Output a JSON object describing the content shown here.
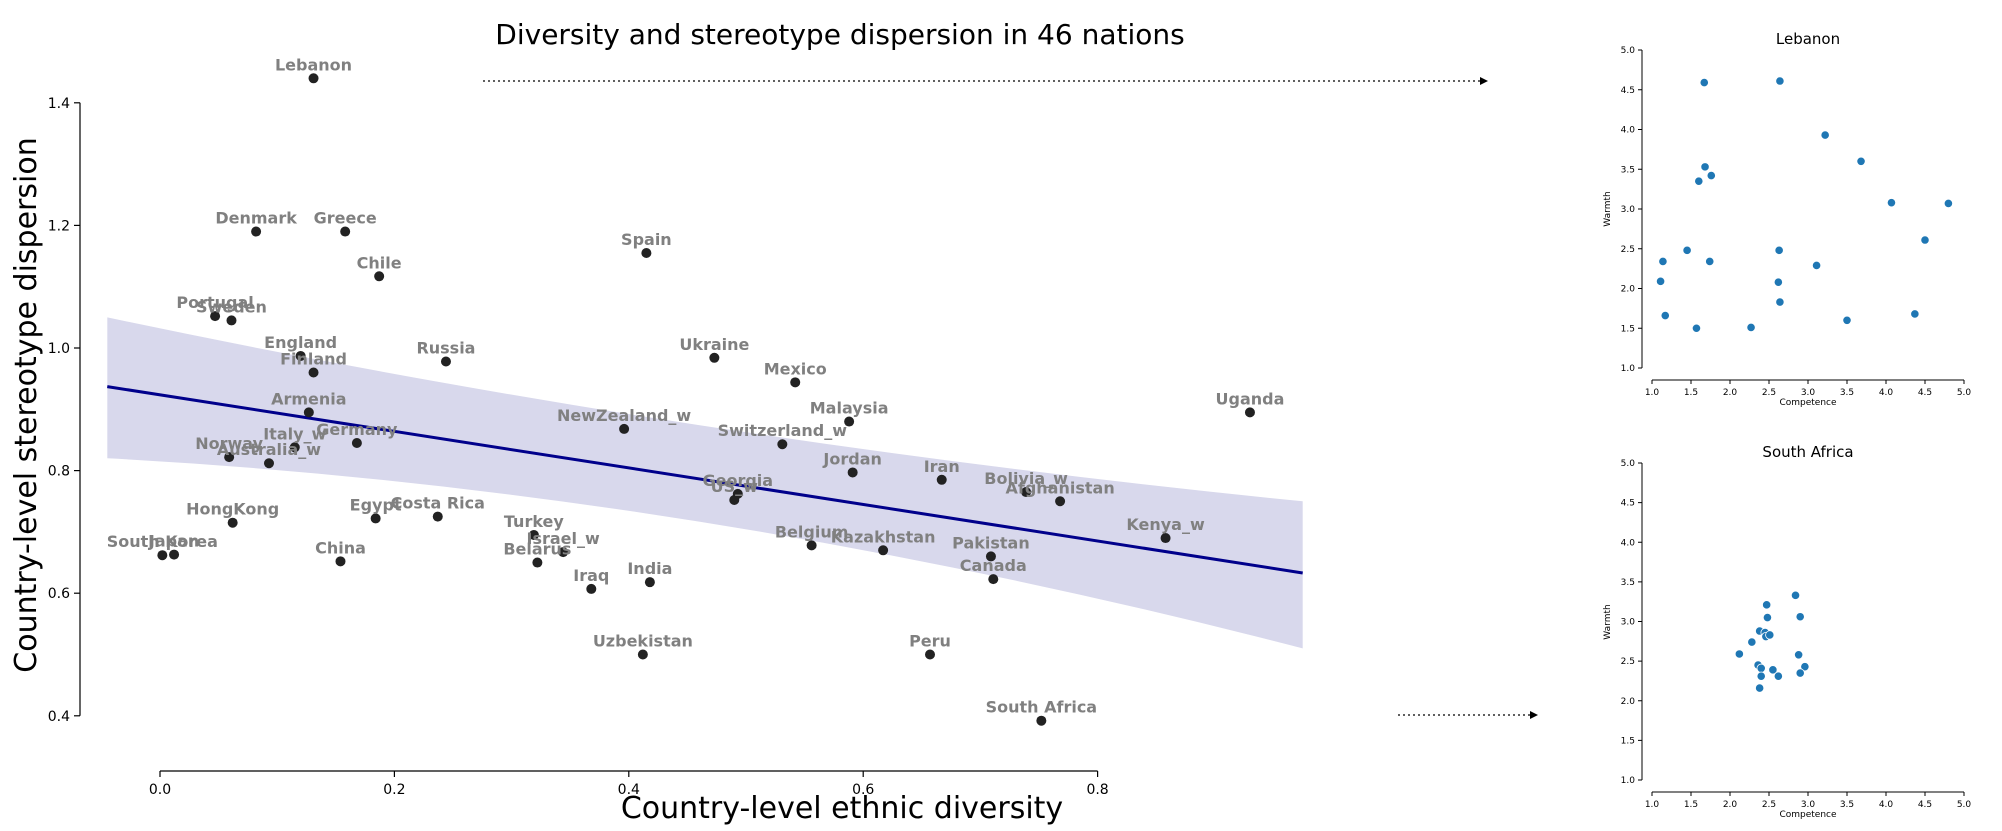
{
  "figure": {
    "title": "Diversity and stereotype dispersion in 46 nations"
  },
  "colors": {
    "point": "#222222",
    "label": "#808080",
    "regression_line": "#00008b",
    "confidence_band": "#d8d8ec",
    "inset_point": "#1f77b4"
  },
  "chart_data": [
    {
      "type": "scatter",
      "title": "Diversity and stereotype dispersion in 46 nations",
      "xlabel": "Country-level ethnic diversity",
      "ylabel": "Country-level stereotype dispersion",
      "xlim": [
        -0.07,
        1.0
      ],
      "ylim": [
        0.31,
        1.46
      ],
      "xticks": [
        "0.0",
        "0.2",
        "0.4",
        "0.6",
        "0.8"
      ],
      "yticks": [
        "0.4",
        "0.6",
        "0.8",
        "1.0",
        "1.2",
        "1.4"
      ],
      "grid": false,
      "regression": {
        "x_start": -0.045,
        "y_start": 0.937,
        "x_end": 0.975,
        "y_end": 0.633,
        "band_start": [
          0.82,
          1.05
        ],
        "band_mid": [
          0.77,
          0.85
        ],
        "band_mid_x": 0.45,
        "band_end": [
          0.51,
          0.75
        ]
      },
      "points": [
        {
          "label": "Lebanon",
          "x": 0.131,
          "y": 1.44
        },
        {
          "label": "Denmark",
          "x": 0.082,
          "y": 1.19
        },
        {
          "label": "Greece",
          "x": 0.158,
          "y": 1.19
        },
        {
          "label": "Spain",
          "x": 0.415,
          "y": 1.155
        },
        {
          "label": "Chile",
          "x": 0.187,
          "y": 1.117
        },
        {
          "label": "Portugal",
          "x": 0.047,
          "y": 1.052
        },
        {
          "label": "Sweden",
          "x": 0.061,
          "y": 1.045
        },
        {
          "label": "England",
          "x": 0.12,
          "y": 0.987
        },
        {
          "label": "Finland",
          "x": 0.131,
          "y": 0.96
        },
        {
          "label": "Russia",
          "x": 0.244,
          "y": 0.978
        },
        {
          "label": "Ukraine",
          "x": 0.473,
          "y": 0.984
        },
        {
          "label": "Mexico",
          "x": 0.542,
          "y": 0.944
        },
        {
          "label": "Armenia",
          "x": 0.127,
          "y": 0.895
        },
        {
          "label": "NewZealand_w",
          "x": 0.396,
          "y": 0.868
        },
        {
          "label": "Malaysia",
          "x": 0.588,
          "y": 0.88
        },
        {
          "label": "Switzerland_w",
          "x": 0.531,
          "y": 0.843
        },
        {
          "label": "Germany",
          "x": 0.168,
          "y": 0.845
        },
        {
          "label": "Italy_w",
          "x": 0.115,
          "y": 0.838
        },
        {
          "label": "Norway",
          "x": 0.059,
          "y": 0.822
        },
        {
          "label": "Australia_w",
          "x": 0.093,
          "y": 0.812
        },
        {
          "label": "Jordan",
          "x": 0.591,
          "y": 0.797
        },
        {
          "label": "Iran",
          "x": 0.667,
          "y": 0.785
        },
        {
          "label": "Bolivia_w",
          "x": 0.739,
          "y": 0.765
        },
        {
          "label": "Afghanistan",
          "x": 0.768,
          "y": 0.75
        },
        {
          "label": "Georgia",
          "x": 0.493,
          "y": 0.762
        },
        {
          "label": "US_w",
          "x": 0.49,
          "y": 0.752
        },
        {
          "label": "Uganda",
          "x": 0.93,
          "y": 0.895
        },
        {
          "label": "HongKong",
          "x": 0.062,
          "y": 0.715
        },
        {
          "label": "Egypt",
          "x": 0.184,
          "y": 0.722
        },
        {
          "label": "Costa Rica",
          "x": 0.237,
          "y": 0.725
        },
        {
          "label": "Turkey",
          "x": 0.319,
          "y": 0.695
        },
        {
          "label": "Israel_w",
          "x": 0.344,
          "y": 0.667
        },
        {
          "label": "Belarus",
          "x": 0.322,
          "y": 0.65
        },
        {
          "label": "Belgium",
          "x": 0.556,
          "y": 0.678
        },
        {
          "label": "Kazakhstan",
          "x": 0.617,
          "y": 0.67
        },
        {
          "label": "Kenya_w",
          "x": 0.858,
          "y": 0.69
        },
        {
          "label": "Pakistan",
          "x": 0.709,
          "y": 0.66
        },
        {
          "label": "Canada",
          "x": 0.711,
          "y": 0.623
        },
        {
          "label": "South Korea",
          "x": 0.002,
          "y": 0.662
        },
        {
          "label": "Japan",
          "x": 0.012,
          "y": 0.663
        },
        {
          "label": "China",
          "x": 0.154,
          "y": 0.652
        },
        {
          "label": "India",
          "x": 0.418,
          "y": 0.618
        },
        {
          "label": "Iraq",
          "x": 0.368,
          "y": 0.607
        },
        {
          "label": "Uzbekistan",
          "x": 0.412,
          "y": 0.5
        },
        {
          "label": "Peru",
          "x": 0.657,
          "y": 0.5
        },
        {
          "label": "South Africa",
          "x": 0.752,
          "y": 0.392
        }
      ]
    },
    {
      "type": "scatter",
      "title": "Lebanon",
      "xlabel": "Competence",
      "ylabel": "Warmth",
      "xlim": [
        1.0,
        5.0
      ],
      "ylim": [
        1.0,
        5.0
      ],
      "xticks": [
        "1.0",
        "1.5",
        "2.0",
        "2.5",
        "3.0",
        "3.5",
        "4.0",
        "4.5",
        "5.0"
      ],
      "yticks": [
        "1.0",
        "1.5",
        "2.0",
        "2.5",
        "3.0",
        "3.5",
        "4.0",
        "4.5",
        "5.0"
      ],
      "points": [
        {
          "x": 1.67,
          "y": 4.59
        },
        {
          "x": 2.64,
          "y": 4.61
        },
        {
          "x": 3.22,
          "y": 3.93
        },
        {
          "x": 3.68,
          "y": 3.6
        },
        {
          "x": 1.68,
          "y": 3.53
        },
        {
          "x": 1.76,
          "y": 3.42
        },
        {
          "x": 1.6,
          "y": 3.35
        },
        {
          "x": 4.07,
          "y": 3.08
        },
        {
          "x": 4.8,
          "y": 3.07
        },
        {
          "x": 4.5,
          "y": 2.61
        },
        {
          "x": 1.45,
          "y": 2.48
        },
        {
          "x": 2.63,
          "y": 2.48
        },
        {
          "x": 1.14,
          "y": 2.34
        },
        {
          "x": 1.74,
          "y": 2.34
        },
        {
          "x": 3.11,
          "y": 2.29
        },
        {
          "x": 1.11,
          "y": 2.09
        },
        {
          "x": 2.62,
          "y": 2.08
        },
        {
          "x": 2.64,
          "y": 1.83
        },
        {
          "x": 1.17,
          "y": 1.66
        },
        {
          "x": 4.37,
          "y": 1.68
        },
        {
          "x": 3.5,
          "y": 1.6
        },
        {
          "x": 1.57,
          "y": 1.5
        },
        {
          "x": 2.27,
          "y": 1.51
        }
      ]
    },
    {
      "type": "scatter",
      "title": "South Africa",
      "xlabel": "Competence",
      "ylabel": "Warmth",
      "xlim": [
        1.0,
        5.0
      ],
      "ylim": [
        1.0,
        5.0
      ],
      "xticks": [
        "1.0",
        "1.5",
        "2.0",
        "2.5",
        "3.0",
        "3.5",
        "4.0",
        "4.5",
        "5.0"
      ],
      "yticks": [
        "1.0",
        "1.5",
        "2.0",
        "2.5",
        "3.0",
        "3.5",
        "4.0",
        "4.5",
        "5.0"
      ],
      "points": [
        {
          "x": 2.84,
          "y": 3.33
        },
        {
          "x": 2.47,
          "y": 3.21
        },
        {
          "x": 2.9,
          "y": 3.06
        },
        {
          "x": 2.48,
          "y": 3.05
        },
        {
          "x": 2.38,
          "y": 2.88
        },
        {
          "x": 2.45,
          "y": 2.86
        },
        {
          "x": 2.46,
          "y": 2.81
        },
        {
          "x": 2.51,
          "y": 2.83
        },
        {
          "x": 2.28,
          "y": 2.74
        },
        {
          "x": 2.12,
          "y": 2.59
        },
        {
          "x": 2.88,
          "y": 2.58
        },
        {
          "x": 2.36,
          "y": 2.45
        },
        {
          "x": 2.96,
          "y": 2.43
        },
        {
          "x": 2.4,
          "y": 2.41
        },
        {
          "x": 2.55,
          "y": 2.39
        },
        {
          "x": 2.9,
          "y": 2.35
        },
        {
          "x": 2.4,
          "y": 2.31
        },
        {
          "x": 2.62,
          "y": 2.31
        },
        {
          "x": 2.38,
          "y": 2.16
        }
      ]
    }
  ]
}
